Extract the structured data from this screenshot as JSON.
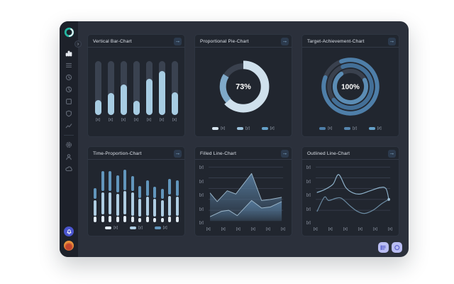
{
  "ui": {
    "page_bg": "#ffffff",
    "window_bg": "#2b303b",
    "sidebar_bg": "#1d212a",
    "card_bg": "#21262f",
    "accent_blue": "#6296bc",
    "light_blue": "#a7cce2",
    "card_action_glyph": "→",
    "collapse_glyph": "›"
  },
  "sidebar": {
    "logo": {
      "name": "app-logo",
      "ring_color": "#23b5a0"
    },
    "nav_top": [
      {
        "icon": "bar-chart-icon",
        "active": true
      },
      {
        "icon": "rows-icon",
        "active": false
      },
      {
        "icon": "clock-icon",
        "active": false
      },
      {
        "icon": "pie-icon",
        "active": false
      },
      {
        "icon": "square-icon",
        "active": false
      },
      {
        "icon": "shield-icon",
        "active": false
      },
      {
        "icon": "trend-icon",
        "active": false
      }
    ],
    "nav_bottom": [
      {
        "icon": "gear-icon",
        "active": false
      },
      {
        "icon": "user-icon",
        "active": false
      },
      {
        "icon": "cloud-icon",
        "active": false
      }
    ],
    "badges": [
      {
        "name": "notification-badge",
        "color": "#4a55cf",
        "glyph": "bell-icon"
      },
      {
        "name": "profile-badge",
        "color": "#e8913c",
        "glyph": "avatar"
      }
    ]
  },
  "cards": [
    {
      "title": "Vertical Bar-Chart"
    },
    {
      "title": "Proportional Pie-Chart"
    },
    {
      "title": "Target-Achievement-Chart"
    },
    {
      "title": "Time-Proportion-Chart"
    },
    {
      "title": "Filled Line-Chart"
    },
    {
      "title": "Outlined Line-Chart"
    }
  ],
  "chart_data": [
    {
      "type": "bar",
      "title": "Vertical Bar-Chart",
      "categories": [
        "[x]",
        "[x]",
        "[x]",
        "[x]",
        "[x]",
        "[x]",
        "[x]"
      ],
      "values_pct": [
        27,
        40,
        56,
        26,
        66,
        81,
        41
      ],
      "ylim": [
        0,
        100
      ],
      "bar_color": "#a7cce2",
      "track_color": "#3a4250"
    },
    {
      "type": "pie",
      "title": "Proportional Pie-Chart",
      "center_label": "73%",
      "slices": [
        {
          "label": "[x]",
          "pct": 63,
          "color": "#cfe0ec"
        },
        {
          "label": "[y]",
          "pct": 21,
          "color": "#7fa9c9"
        },
        {
          "label": "[z]",
          "pct": 16,
          "color": "#3a414e"
        }
      ],
      "legend": [
        {
          "label": "[x]",
          "color": "#d6e4ef"
        },
        {
          "label": "[y]",
          "color": "#9cc2dc"
        },
        {
          "label": "[z]",
          "color": "#64a0c8"
        }
      ],
      "legend_position": "bottom"
    },
    {
      "type": "rings",
      "title": "Target-Achievement-Chart",
      "center_label": "100%",
      "rings": [
        {
          "label": "[x]",
          "pct": 86,
          "color": "#4e7ea8"
        },
        {
          "label": "[y]",
          "pct": 70,
          "color": "#436f97"
        },
        {
          "label": "[z]",
          "pct": 72,
          "color": "#5b8cb4"
        }
      ],
      "track_color": "#3a414e",
      "legend": [
        {
          "label": "[x]",
          "color": "#4e7ea8"
        },
        {
          "label": "[y]",
          "color": "#5585ae"
        },
        {
          "label": "[z]",
          "color": "#64a0c8"
        }
      ],
      "legend_position": "bottom"
    },
    {
      "type": "stacked-bar",
      "title": "Time-Proportion-Chart",
      "segment_colors": [
        "#e0eaf2",
        "#aecde2",
        "#6296bc"
      ],
      "bars": [
        [
          10,
          28,
          20
        ],
        [
          12,
          40,
          36
        ],
        [
          12,
          40,
          36
        ],
        [
          10,
          40,
          31
        ],
        [
          12,
          42,
          37
        ],
        [
          10,
          42,
          28
        ],
        [
          8,
          32,
          22
        ],
        [
          10,
          34,
          28
        ],
        [
          8,
          32,
          20
        ],
        [
          8,
          30,
          18
        ],
        [
          10,
          36,
          28
        ],
        [
          10,
          34,
          28
        ]
      ],
      "unit": "percent_of_plot_height",
      "legend": [
        {
          "label": "[x]",
          "color": "#e0eaf2"
        },
        {
          "label": "[y]",
          "color": "#aecde2"
        },
        {
          "label": "[z]",
          "color": "#6296bc"
        }
      ],
      "legend_position": "bottom"
    },
    {
      "type": "area",
      "title": "Filled Line-Chart",
      "x_labels": [
        "[x]",
        "[x]",
        "[x]",
        "[x]",
        "[x]",
        "[x]"
      ],
      "y_labels": [
        "[y]",
        "[y]",
        "[y]",
        "[y]",
        "[y]"
      ],
      "ylim": [
        0,
        5
      ],
      "grid": true,
      "stroke_color": "#9bb6ca",
      "fill_top_color": "#55799a",
      "series": [
        {
          "name": "series-1",
          "points": [
            [
              0,
              2.6
            ],
            [
              0.5,
              1.8
            ],
            [
              1.2,
              2.8
            ],
            [
              1.8,
              2.5
            ],
            [
              2.9,
              4.4
            ],
            [
              3.6,
              1.9
            ],
            [
              4.2,
              2.0
            ],
            [
              5,
              2.2
            ]
          ]
        },
        {
          "name": "series-2",
          "points": [
            [
              0,
              0.4
            ],
            [
              0.8,
              0.9
            ],
            [
              1.3,
              1.0
            ],
            [
              1.9,
              0.5
            ],
            [
              2.9,
              1.9
            ],
            [
              3.6,
              1.2
            ],
            [
              4.2,
              1.3
            ],
            [
              5,
              1.8
            ]
          ]
        }
      ]
    },
    {
      "type": "line",
      "title": "Outlined Line-Chart",
      "x_labels": [
        "[x]",
        "[x]",
        "[x]",
        "[x]",
        "[x]",
        "[x]"
      ],
      "y_labels": [
        "[y]",
        "[y]",
        "[y]",
        "[y]",
        "[y]"
      ],
      "ylim": [
        0,
        5
      ],
      "grid": true,
      "end_dot": true,
      "series": [
        {
          "name": "series-1",
          "color": "#8fb3cc",
          "points": [
            [
              0,
              2.65
            ],
            [
              0.5,
              2.9
            ],
            [
              1.1,
              3.4
            ],
            [
              1.5,
              4.3
            ],
            [
              2.0,
              3.1
            ],
            [
              2.5,
              2.6
            ],
            [
              3.0,
              2.5
            ],
            [
              3.7,
              2.8
            ],
            [
              4.4,
              3.1
            ],
            [
              4.8,
              3.0
            ],
            [
              5,
              2.0
            ]
          ]
        },
        {
          "name": "series-2",
          "color": "#6b8ba3",
          "points": [
            [
              0,
              0.9
            ],
            [
              0.5,
              2.2
            ],
            [
              0.8,
              1.9
            ],
            [
              1.3,
              2.1
            ],
            [
              1.7,
              2.1
            ],
            [
              2.3,
              1.4
            ],
            [
              2.8,
              0.9
            ],
            [
              3.3,
              0.7
            ],
            [
              3.9,
              1.0
            ],
            [
              4.5,
              1.6
            ],
            [
              5,
              2.0
            ]
          ]
        }
      ]
    }
  ],
  "fabs": [
    {
      "icon": "menu-list-icon"
    },
    {
      "icon": "shape-circle-icon"
    }
  ]
}
